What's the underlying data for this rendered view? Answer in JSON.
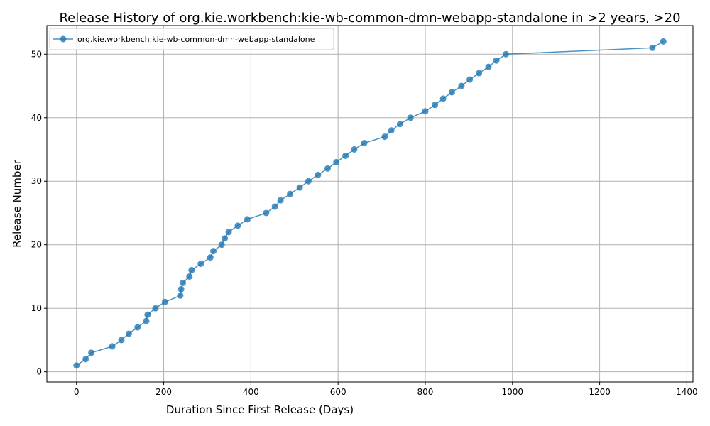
{
  "chart_data": {
    "type": "line",
    "title": "Release History of org.kie.workbench:kie-wb-common-dmn-webapp-standalone in >2 years, >20",
    "xlabel": "Duration Since First Release (Days)",
    "ylabel": "Release Number",
    "xlim": [
      -68,
      1414
    ],
    "ylim": [
      -1.6,
      54.5
    ],
    "xticks": [
      0,
      200,
      400,
      600,
      800,
      1000,
      1200,
      1400
    ],
    "yticks": [
      0,
      10,
      20,
      30,
      40,
      50
    ],
    "grid": true,
    "legend_position": "top-left",
    "color": "#1f77b4",
    "series": [
      {
        "name": "org.kie.workbench:kie-wb-common-dmn-webapp-standalone",
        "x": [
          0,
          21,
          34,
          82,
          103,
          120,
          140,
          160,
          163,
          181,
          203,
          238,
          240,
          244,
          259,
          264,
          285,
          307,
          314,
          333,
          340,
          349,
          370,
          392,
          435,
          455,
          468,
          490,
          512,
          532,
          554,
          576,
          596,
          617,
          637,
          660,
          707,
          722,
          742,
          766,
          800,
          822,
          841,
          861,
          883,
          902,
          923,
          945,
          963,
          985,
          1321,
          1346
        ],
        "y": [
          1,
          2,
          3,
          4,
          5,
          6,
          7,
          8,
          9,
          10,
          11,
          12,
          13,
          14,
          15,
          16,
          17,
          18,
          19,
          20,
          21,
          22,
          23,
          24,
          25,
          26,
          27,
          28,
          29,
          30,
          31,
          32,
          33,
          34,
          35,
          36,
          37,
          38,
          39,
          40,
          41,
          42,
          43,
          44,
          45,
          46,
          47,
          48,
          49,
          50,
          51,
          52
        ]
      }
    ]
  }
}
